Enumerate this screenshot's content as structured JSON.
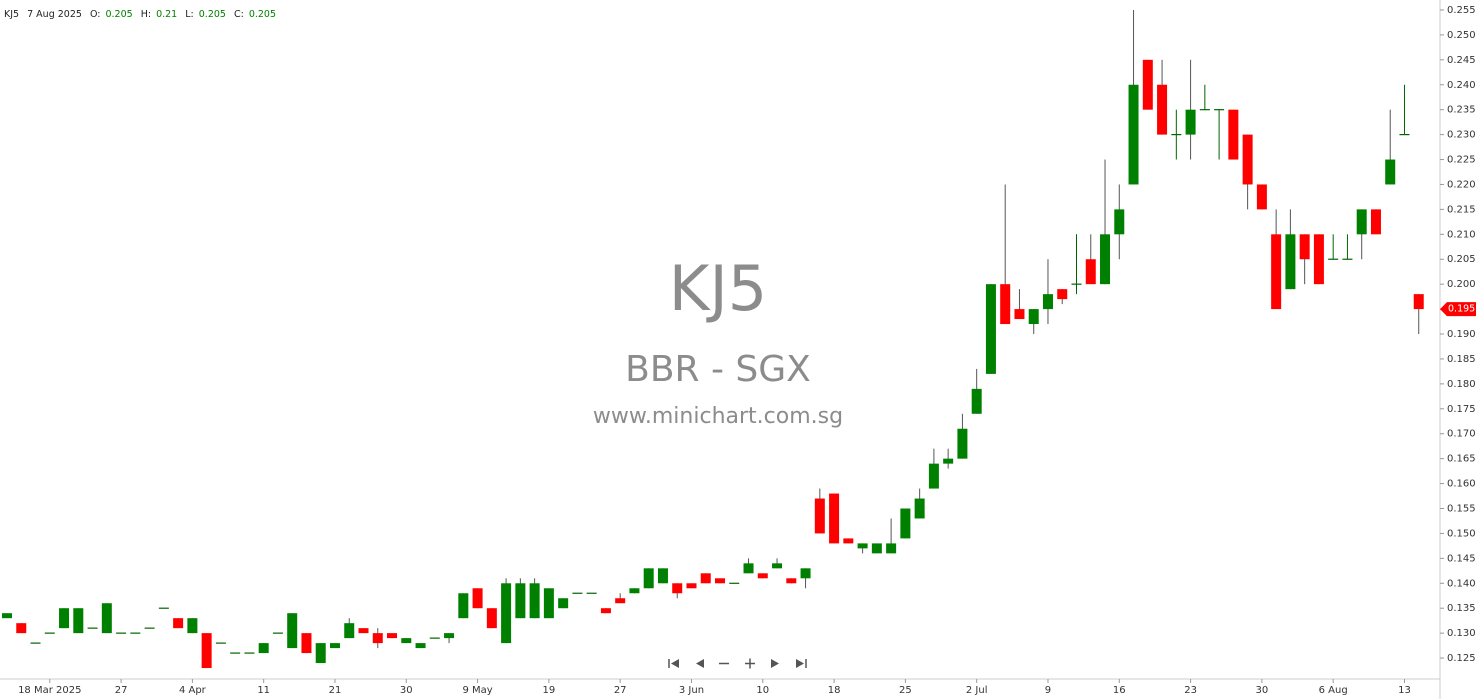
{
  "chart_data": {
    "type": "candlestick",
    "header": {
      "symbol": "KJ5",
      "date": "7 Aug 2025",
      "labels": [
        "O:",
        "H:",
        "L:",
        "C:"
      ],
      "values": [
        0.205,
        0.21,
        0.205,
        0.205
      ]
    },
    "watermark": [
      "KJ5",
      "BBR - SGX",
      "www.minichart.com.sg"
    ],
    "categories": [
      null,
      null,
      null,
      "18 Mar 2025",
      null,
      null,
      null,
      null,
      "27",
      null,
      null,
      null,
      null,
      "4 Apr",
      null,
      null,
      null,
      null,
      "11",
      null,
      null,
      null,
      null,
      "21",
      null,
      null,
      null,
      null,
      "30",
      null,
      null,
      null,
      null,
      "9 May",
      null,
      null,
      null,
      null,
      "19",
      null,
      null,
      null,
      null,
      "27",
      null,
      null,
      null,
      null,
      "3 Jun",
      null,
      null,
      null,
      null,
      "10",
      null,
      null,
      null,
      null,
      "18",
      null,
      null,
      null,
      null,
      "25",
      null,
      null,
      null,
      null,
      "2 Jul",
      null,
      null,
      null,
      null,
      "9",
      null,
      null,
      null,
      null,
      "16",
      null,
      null,
      null,
      null,
      "23",
      null,
      null,
      null,
      null,
      "30",
      null,
      null,
      null,
      null,
      "6 Aug",
      null,
      null,
      null,
      null,
      "13",
      null
    ],
    "open": [
      0.133,
      0.132,
      0.128,
      0.13,
      0.131,
      0.13,
      0.131,
      0.13,
      0.13,
      0.13,
      0.131,
      0.135,
      0.133,
      0.13,
      0.13,
      0.128,
      0.126,
      0.126,
      0.126,
      0.13,
      0.127,
      0.13,
      0.124,
      0.127,
      0.129,
      0.131,
      0.13,
      0.13,
      0.128,
      0.127,
      0.129,
      0.129,
      0.133,
      0.139,
      0.135,
      0.128,
      0.133,
      0.133,
      0.133,
      0.135,
      0.138,
      0.138,
      0.135,
      0.137,
      0.138,
      0.139,
      0.14,
      0.14,
      0.14,
      0.142,
      0.141,
      0.14,
      0.142,
      0.142,
      0.143,
      0.141,
      0.141,
      0.157,
      0.158,
      0.149,
      0.147,
      0.146,
      0.146,
      0.149,
      0.153,
      0.159,
      0.164,
      0.165,
      0.174,
      0.182,
      0.2,
      0.195,
      0.192,
      0.195,
      0.199,
      0.2,
      0.205,
      0.2,
      0.21,
      0.22,
      0.245,
      0.24,
      0.23,
      0.23,
      0.235,
      0.235,
      0.235,
      0.23,
      0.22,
      0.21,
      0.199,
      0.21,
      0.21,
      0.205,
      0.205,
      0.21,
      0.215,
      0.22,
      0.23,
      0.198
    ],
    "high": [
      0.134,
      0.132,
      0.128,
      0.13,
      0.135,
      0.135,
      0.131,
      0.136,
      0.13,
      0.13,
      0.131,
      0.135,
      0.133,
      0.133,
      0.13,
      0.128,
      0.126,
      0.126,
      0.128,
      0.13,
      0.134,
      0.13,
      0.128,
      0.128,
      0.133,
      0.131,
      0.131,
      0.13,
      0.129,
      0.128,
      0.129,
      0.13,
      0.138,
      0.139,
      0.135,
      0.141,
      0.141,
      0.141,
      0.139,
      0.137,
      0.138,
      0.138,
      0.135,
      0.138,
      0.139,
      0.143,
      0.143,
      0.14,
      0.14,
      0.142,
      0.141,
      0.14,
      0.145,
      0.142,
      0.145,
      0.141,
      0.143,
      0.159,
      0.158,
      0.149,
      0.148,
      0.148,
      0.153,
      0.155,
      0.159,
      0.167,
      0.167,
      0.174,
      0.183,
      0.2,
      0.22,
      0.199,
      0.195,
      0.205,
      0.199,
      0.21,
      0.21,
      0.225,
      0.22,
      0.255,
      0.245,
      0.245,
      0.235,
      0.245,
      0.24,
      0.235,
      0.235,
      0.23,
      0.22,
      0.215,
      0.215,
      0.21,
      0.21,
      0.21,
      0.21,
      0.215,
      0.215,
      0.235,
      0.24,
      0.198
    ],
    "low": [
      0.133,
      0.13,
      0.128,
      0.13,
      0.131,
      0.13,
      0.131,
      0.13,
      0.13,
      0.13,
      0.131,
      0.135,
      0.131,
      0.13,
      0.123,
      0.128,
      0.126,
      0.126,
      0.126,
      0.13,
      0.127,
      0.126,
      0.124,
      0.127,
      0.129,
      0.13,
      0.127,
      0.129,
      0.128,
      0.127,
      0.129,
      0.128,
      0.133,
      0.135,
      0.131,
      0.128,
      0.133,
      0.133,
      0.133,
      0.135,
      0.138,
      0.138,
      0.134,
      0.136,
      0.138,
      0.139,
      0.14,
      0.137,
      0.139,
      0.14,
      0.14,
      0.14,
      0.142,
      0.141,
      0.143,
      0.14,
      0.139,
      0.15,
      0.148,
      0.148,
      0.146,
      0.146,
      0.146,
      0.149,
      0.153,
      0.159,
      0.163,
      0.165,
      0.174,
      0.182,
      0.192,
      0.193,
      0.19,
      0.192,
      0.196,
      0.198,
      0.2,
      0.2,
      0.205,
      0.22,
      0.235,
      0.23,
      0.225,
      0.225,
      0.235,
      0.225,
      0.225,
      0.215,
      0.215,
      0.195,
      0.199,
      0.2,
      0.2,
      0.205,
      0.205,
      0.205,
      0.21,
      0.22,
      0.23,
      0.19
    ],
    "close": [
      0.134,
      0.13,
      0.128,
      0.13,
      0.135,
      0.135,
      0.131,
      0.136,
      0.13,
      0.13,
      0.131,
      0.135,
      0.131,
      0.133,
      0.123,
      0.128,
      0.126,
      0.126,
      0.128,
      0.13,
      0.134,
      0.126,
      0.128,
      0.128,
      0.132,
      0.13,
      0.128,
      0.129,
      0.129,
      0.128,
      0.129,
      0.13,
      0.138,
      0.135,
      0.131,
      0.14,
      0.14,
      0.14,
      0.139,
      0.137,
      0.138,
      0.138,
      0.134,
      0.136,
      0.139,
      0.143,
      0.143,
      0.138,
      0.139,
      0.14,
      0.14,
      0.14,
      0.144,
      0.141,
      0.144,
      0.14,
      0.143,
      0.15,
      0.148,
      0.148,
      0.148,
      0.148,
      0.148,
      0.155,
      0.157,
      0.164,
      0.165,
      0.171,
      0.179,
      0.2,
      0.192,
      0.193,
      0.195,
      0.198,
      0.197,
      0.2,
      0.2,
      0.21,
      0.215,
      0.24,
      0.235,
      0.23,
      0.23,
      0.235,
      0.235,
      0.235,
      0.225,
      0.22,
      0.215,
      0.195,
      0.21,
      0.205,
      0.2,
      0.205,
      0.205,
      0.215,
      0.21,
      0.225,
      0.23,
      0.195
    ],
    "up_color": "#008000",
    "down_color": "#ff0000",
    "flat_color": "#006400",
    "last_price": 0.195,
    "ylim": [
      0.121,
      0.257
    ],
    "yticks": [
      0.125,
      {
        "value": 0.13,
        "label": "0.130"
      },
      0.135,
      {
        "value": 0.14,
        "label": "0.140"
      },
      0.145,
      {
        "value": 0.15,
        "label": "0.150"
      },
      0.155,
      {
        "value": 0.16,
        "label": "0.160"
      },
      0.165,
      {
        "value": 0.17,
        "label": "0.170"
      },
      0.175,
      {
        "value": 0.18,
        "label": "0.180"
      },
      0.185,
      {
        "value": 0.19,
        "label": "0.190"
      },
      0.195,
      {
        "value": 0.2,
        "label": "0.200"
      },
      0.205,
      {
        "value": 0.21,
        "label": "0.210"
      },
      0.215,
      {
        "value": 0.22,
        "label": "0.220"
      },
      0.225,
      {
        "value": 0.23,
        "label": "0.230"
      },
      0.235,
      {
        "value": 0.24,
        "label": "0.240"
      },
      0.245,
      {
        "value": 0.25,
        "label": "0.250"
      },
      0.255
    ],
    "grid": false
  }
}
